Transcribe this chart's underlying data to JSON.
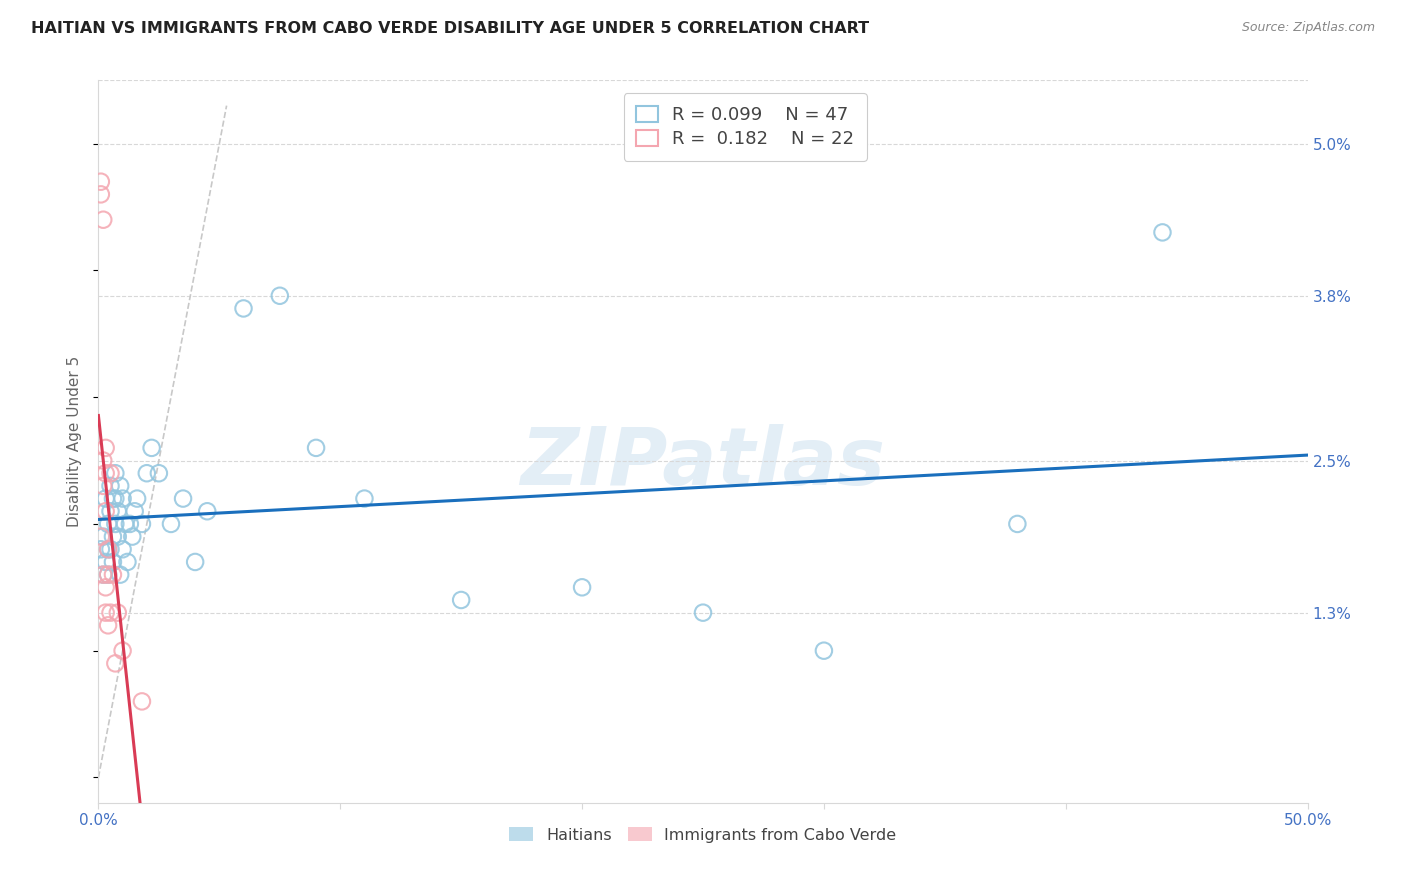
{
  "title": "HAITIAN VS IMMIGRANTS FROM CABO VERDE DISABILITY AGE UNDER 5 CORRELATION CHART",
  "source": "Source: ZipAtlas.com",
  "ylabel": "Disability Age Under 5",
  "xlim": [
    0.0,
    0.5
  ],
  "ylim": [
    -0.002,
    0.055
  ],
  "yticks_right": [
    0.013,
    0.025,
    0.038,
    0.05
  ],
  "yticklabels_right": [
    "1.3%",
    "2.5%",
    "3.8%",
    "5.0%"
  ],
  "legend_blue_r": "0.099",
  "legend_blue_n": "47",
  "legend_pink_r": "0.182",
  "legend_pink_n": "22",
  "blue_color": "#92c5de",
  "pink_color": "#f4a6b0",
  "trend_blue_color": "#1a6fbd",
  "trend_pink_color": "#d93b55",
  "diagonal_color": "#c8c8c8",
  "label_color": "#4472c4",
  "grid_color": "#d8d8d8",
  "haitians_x": [
    0.001,
    0.002,
    0.002,
    0.003,
    0.003,
    0.004,
    0.004,
    0.004,
    0.005,
    0.005,
    0.005,
    0.006,
    0.006,
    0.006,
    0.007,
    0.007,
    0.007,
    0.008,
    0.008,
    0.009,
    0.009,
    0.01,
    0.01,
    0.011,
    0.012,
    0.013,
    0.014,
    0.015,
    0.016,
    0.018,
    0.02,
    0.022,
    0.025,
    0.03,
    0.035,
    0.04,
    0.045,
    0.06,
    0.075,
    0.09,
    0.11,
    0.15,
    0.2,
    0.25,
    0.3,
    0.38,
    0.44
  ],
  "haitians_y": [
    0.018,
    0.019,
    0.016,
    0.022,
    0.017,
    0.018,
    0.016,
    0.02,
    0.023,
    0.021,
    0.018,
    0.022,
    0.019,
    0.017,
    0.02,
    0.022,
    0.024,
    0.021,
    0.019,
    0.023,
    0.016,
    0.022,
    0.018,
    0.02,
    0.017,
    0.02,
    0.019,
    0.021,
    0.022,
    0.02,
    0.024,
    0.026,
    0.024,
    0.02,
    0.022,
    0.017,
    0.021,
    0.037,
    0.038,
    0.026,
    0.022,
    0.014,
    0.015,
    0.013,
    0.01,
    0.02,
    0.043
  ],
  "cabo_x": [
    0.001,
    0.001,
    0.001,
    0.002,
    0.002,
    0.002,
    0.002,
    0.003,
    0.003,
    0.003,
    0.003,
    0.003,
    0.004,
    0.004,
    0.004,
    0.005,
    0.005,
    0.006,
    0.007,
    0.008,
    0.01,
    0.018
  ],
  "cabo_y": [
    0.047,
    0.046,
    0.019,
    0.044,
    0.025,
    0.023,
    0.016,
    0.026,
    0.024,
    0.021,
    0.015,
    0.013,
    0.018,
    0.016,
    0.012,
    0.024,
    0.013,
    0.016,
    0.009,
    0.013,
    0.01,
    0.006
  ]
}
